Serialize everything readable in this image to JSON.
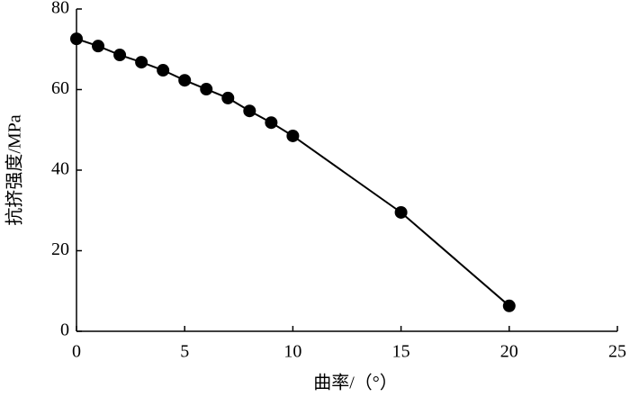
{
  "chart_data": {
    "type": "line",
    "x_label": "曲率/（°）",
    "y_label": "抗挤强度/MPa",
    "x": [
      0,
      1,
      2,
      3,
      4,
      5,
      6,
      7,
      8,
      9,
      10,
      15,
      20
    ],
    "series": [
      {
        "color": "#000000",
        "values": [
          72.6,
          70.8,
          68.6,
          66.8,
          64.8,
          62.3,
          60.1,
          57.9,
          54.7,
          51.8,
          48.5,
          29.5,
          6.3
        ]
      }
    ],
    "xlim": [
      0,
      25
    ],
    "xticks": [
      0,
      5,
      10,
      15,
      20,
      25
    ],
    "ylim": [
      0,
      80
    ],
    "yticks": [
      0,
      20,
      40,
      60,
      80
    ],
    "grid": false
  }
}
